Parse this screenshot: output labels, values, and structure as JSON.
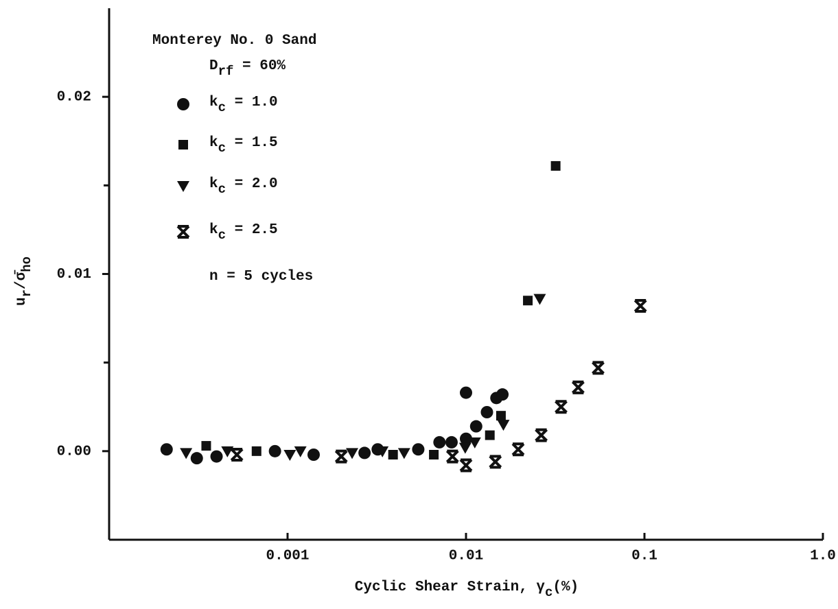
{
  "chart_data": {
    "type": "scatter",
    "xscale": "log",
    "xlim": [
      0.0001,
      1
    ],
    "ylim": [
      -0.005,
      0.025
    ],
    "xticks": [
      0.001,
      0.01,
      0.1,
      {
        "value": 1,
        "label": "1.0"
      }
    ],
    "yticks": [
      {
        "value": 0,
        "label": "0.00"
      },
      0.01,
      0.02
    ],
    "y_minor_ticks": [
      0.005,
      0.015
    ],
    "color": "#111111",
    "xlabel": [
      {
        "t": "Cyclic Shear Strain, γ"
      },
      {
        "t": "c",
        "sub": true
      },
      {
        "t": "(%)"
      }
    ],
    "ylabel": [
      {
        "t": "u"
      },
      {
        "t": "r",
        "sub": true
      },
      {
        "t": "/σ̄"
      },
      {
        "t": "ho",
        "sub": true
      }
    ],
    "annotations": [
      [
        {
          "t": "Monterey No. 0 Sand"
        }
      ],
      [
        {
          "t": "D"
        },
        {
          "t": "rf",
          "sub": true
        },
        {
          "t": " = 60%"
        }
      ],
      [
        {
          "t": "n = 5 cycles"
        }
      ]
    ],
    "series": [
      {
        "label": [
          {
            "t": "k"
          },
          {
            "t": "c",
            "sub": true
          },
          {
            "t": " = 1.0"
          }
        ],
        "marker": "circle",
        "x": [
          0.00021,
          0.00031,
          0.0004,
          0.00085,
          0.0014,
          0.0027,
          0.0032,
          0.0054,
          0.0071,
          0.0083,
          0.01,
          0.01,
          0.0114,
          0.0131,
          0.0148,
          0.016
        ],
        "values": [
          0.0001,
          -0.0004,
          -0.0003,
          0,
          -0.0002,
          -0.0001,
          0.0001,
          0.0001,
          0.0005,
          0.0005,
          0.0007,
          0.0033,
          0.0014,
          0.0022,
          0.003,
          0.0032
        ]
      },
      {
        "label": [
          {
            "t": "k"
          },
          {
            "t": "c",
            "sub": true
          },
          {
            "t": " = 1.5"
          }
        ],
        "marker": "square",
        "x": [
          0.00035,
          0.00067,
          0.0039,
          0.0066,
          0.0136,
          0.0157,
          0.0222,
          0.0318
        ],
        "values": [
          0.0003,
          0,
          -0.0002,
          -0.0002,
          0.0009,
          0.002,
          0.0085,
          0.0161
        ]
      },
      {
        "label": [
          {
            "t": "k"
          },
          {
            "t": "c",
            "sub": true
          },
          {
            "t": " = 2.0"
          }
        ],
        "marker": "triangle-down",
        "x": [
          0.00027,
          0.00046,
          0.00103,
          0.00118,
          0.0023,
          0.0034,
          0.0045,
          0.0099,
          0.0112,
          0.0162,
          0.0259
        ],
        "values": [
          -0.0001,
          0,
          -0.0002,
          0,
          -0.0001,
          0,
          -0.0001,
          0.0002,
          0.0005,
          0.0015,
          0.0086
        ]
      },
      {
        "label": [
          {
            "t": "k"
          },
          {
            "t": "c",
            "sub": true
          },
          {
            "t": " = 2.5"
          }
        ],
        "marker": "x",
        "x": [
          0.00052,
          0.002,
          0.0084,
          0.01,
          0.0146,
          0.0196,
          0.0264,
          0.0341,
          0.0425,
          0.055,
          0.095
        ],
        "values": [
          -0.0002,
          -0.0003,
          -0.0003,
          -0.0008,
          -0.0006,
          0.0001,
          0.0009,
          0.0025,
          0.0036,
          0.0047,
          0.0082
        ]
      }
    ]
  }
}
